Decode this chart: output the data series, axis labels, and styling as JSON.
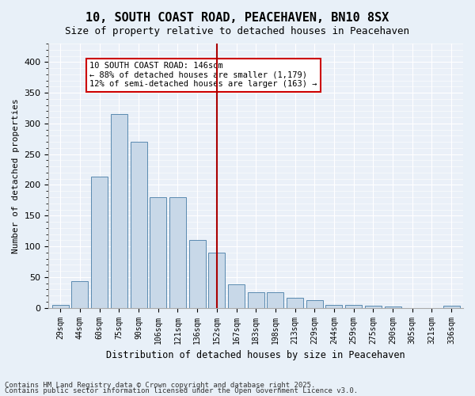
{
  "title": "10, SOUTH COAST ROAD, PEACEHAVEN, BN10 8SX",
  "subtitle": "Size of property relative to detached houses in Peacehaven",
  "xlabel": "Distribution of detached houses by size in Peacehaven",
  "ylabel": "Number of detached properties",
  "categories": [
    "29sqm",
    "44sqm",
    "60sqm",
    "75sqm",
    "90sqm",
    "106sqm",
    "121sqm",
    "136sqm",
    "152sqm",
    "167sqm",
    "183sqm",
    "198sqm",
    "213sqm",
    "229sqm",
    "244sqm",
    "259sqm",
    "275sqm",
    "290sqm",
    "305sqm",
    "321sqm",
    "336sqm"
  ],
  "bar_heights": [
    5,
    44,
    213,
    315,
    270,
    180,
    180,
    110,
    90,
    38,
    25,
    25,
    16,
    13,
    5,
    5,
    3,
    2,
    0,
    0,
    3
  ],
  "bar_color": "#c8d8e8",
  "bar_edge_color": "#5a8ab0",
  "vline_x": 8.0,
  "vline_color": "#aa0000",
  "vline_label": "10 SOUTH COAST ROAD: 146sqm",
  "annotation_line1": "10 SOUTH COAST ROAD: 146sqm",
  "annotation_line2": "← 88% of detached houses are smaller (1,179)",
  "annotation_line3": "12% of semi-detached houses are larger (163) →",
  "annotation_box_color": "#ffffff",
  "annotation_box_edge": "#cc0000",
  "ylim": [
    0,
    430
  ],
  "yticks": [
    0,
    50,
    100,
    150,
    200,
    250,
    300,
    350,
    400
  ],
  "footer1": "Contains HM Land Registry data © Crown copyright and database right 2025.",
  "footer2": "Contains public sector information licensed under the Open Government Licence v3.0.",
  "bg_color": "#e8f0f8",
  "plot_bg_color": "#eaf0f8"
}
